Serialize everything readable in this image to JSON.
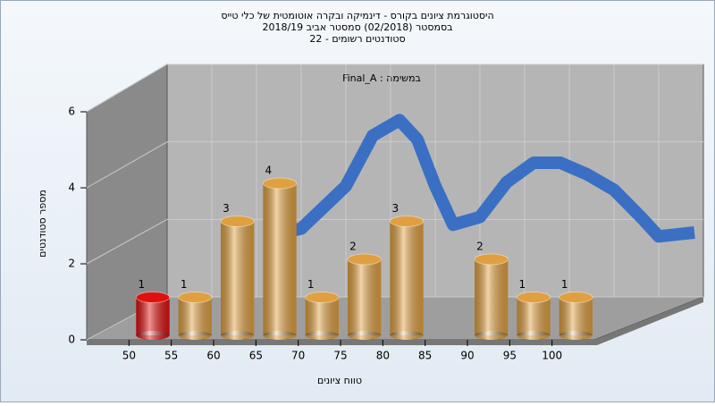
{
  "chart_data": {
    "type": "histogram",
    "title": [
      "היסטוגרמת ציונים בקורס - דינמיקה ובקרה אוטומטית של כלי טייס",
      "בסמסטר  (02/2018)  סמסטר אביב 2018/19",
      "סטודנטים רשומים - 22"
    ],
    "annotation": "Final_A : במשימה",
    "x_label": "טווח ציונים",
    "y_label": "מספר סטודנטים",
    "bins": [
      50,
      55,
      60,
      65,
      70,
      75,
      80,
      85,
      90,
      95,
      100,
      105
    ],
    "values": [
      1,
      1,
      3,
      4,
      1,
      2,
      3,
      0,
      2,
      1,
      1
    ],
    "value_labels": [
      "1",
      "1",
      "3",
      "4",
      "1",
      "2",
      "3",
      null,
      "2",
      "1",
      "1"
    ],
    "colors": [
      "#e01010",
      "#e0a040",
      "#e0a040",
      "#e0a040",
      "#e0a040",
      "#e0a040",
      "#e0a040",
      "#e0a040",
      "#e0a040",
      "#e0a040",
      "#e0a040"
    ],
    "curve": {
      "x": [
        56,
        60,
        65,
        68,
        71,
        73,
        75,
        77,
        80,
        83,
        86,
        89,
        92,
        95,
        98,
        100,
        104
      ],
      "values": [
        1.7,
        1.9,
        3.0,
        4.3,
        4.7,
        4.2,
        3.0,
        2.0,
        2.2,
        3.1,
        3.6,
        3.6,
        3.3,
        2.9,
        2.2,
        1.7,
        1.8
      ],
      "color": "#3a6fc4"
    },
    "xlim": [
      45,
      105
    ],
    "ylim": [
      0,
      6
    ],
    "xticks": [
      50,
      55,
      60,
      65,
      70,
      75,
      80,
      85,
      90,
      95,
      100
    ],
    "yticks": [
      0,
      2,
      4,
      6
    ],
    "grid": true
  }
}
